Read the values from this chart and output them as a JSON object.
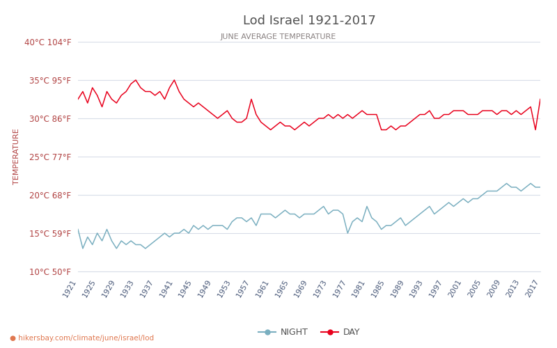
{
  "title": "Lod Israel 1921-2017",
  "subtitle": "JUNE AVERAGE TEMPERATURE",
  "ylabel": "TEMPERATURE",
  "footer": "hikersbay.com/climate/june/israel/lod",
  "years": [
    1921,
    1922,
    1923,
    1924,
    1925,
    1926,
    1927,
    1928,
    1929,
    1930,
    1931,
    1932,
    1933,
    1934,
    1935,
    1936,
    1937,
    1938,
    1939,
    1940,
    1941,
    1942,
    1943,
    1944,
    1945,
    1946,
    1947,
    1948,
    1949,
    1950,
    1951,
    1952,
    1953,
    1954,
    1955,
    1956,
    1957,
    1958,
    1959,
    1960,
    1961,
    1962,
    1963,
    1964,
    1965,
    1966,
    1967,
    1968,
    1969,
    1970,
    1971,
    1972,
    1973,
    1974,
    1975,
    1976,
    1977,
    1978,
    1979,
    1980,
    1981,
    1982,
    1983,
    1984,
    1985,
    1986,
    1987,
    1988,
    1989,
    1990,
    1991,
    1992,
    1993,
    1994,
    1995,
    1996,
    1997,
    1998,
    1999,
    2000,
    2001,
    2002,
    2003,
    2004,
    2005,
    2006,
    2007,
    2008,
    2009,
    2010,
    2011,
    2012,
    2013,
    2014,
    2015,
    2016,
    2017
  ],
  "day_temps": [
    32.5,
    33.5,
    32.0,
    34.0,
    33.0,
    31.5,
    33.5,
    32.5,
    32.0,
    33.0,
    33.5,
    34.5,
    35.0,
    34.0,
    33.5,
    33.5,
    33.0,
    33.5,
    32.5,
    34.0,
    35.0,
    33.5,
    32.5,
    32.0,
    31.5,
    32.0,
    31.5,
    31.0,
    30.5,
    30.0,
    30.5,
    31.0,
    30.0,
    29.5,
    29.5,
    30.0,
    32.5,
    30.5,
    29.5,
    29.0,
    28.5,
    29.0,
    29.5,
    29.0,
    29.0,
    28.5,
    29.0,
    29.5,
    29.0,
    29.5,
    30.0,
    30.0,
    30.5,
    30.0,
    30.5,
    30.0,
    30.5,
    30.0,
    30.5,
    31.0,
    30.5,
    30.5,
    30.5,
    28.5,
    28.5,
    29.0,
    28.5,
    29.0,
    29.0,
    29.5,
    30.0,
    30.5,
    30.5,
    31.0,
    30.0,
    30.0,
    30.5,
    30.5,
    31.0,
    31.0,
    31.0,
    30.5,
    30.5,
    30.5,
    31.0,
    31.0,
    31.0,
    30.5,
    31.0,
    31.0,
    30.5,
    31.0,
    30.5,
    31.0,
    31.5,
    28.5,
    32.5
  ],
  "night_temps": [
    15.5,
    13.0,
    14.5,
    13.5,
    15.0,
    14.0,
    15.5,
    14.0,
    13.0,
    14.0,
    13.5,
    14.0,
    13.5,
    13.5,
    13.0,
    13.5,
    14.0,
    14.5,
    15.0,
    14.5,
    15.0,
    15.0,
    15.5,
    15.0,
    16.0,
    15.5,
    16.0,
    15.5,
    16.0,
    16.0,
    16.0,
    15.5,
    16.5,
    17.0,
    17.0,
    16.5,
    17.0,
    16.0,
    17.5,
    17.5,
    17.5,
    17.0,
    17.5,
    18.0,
    17.5,
    17.5,
    17.0,
    17.5,
    17.5,
    17.5,
    18.0,
    18.5,
    17.5,
    18.0,
    18.0,
    17.5,
    15.0,
    16.5,
    17.0,
    16.5,
    18.5,
    17.0,
    16.5,
    15.5,
    16.0,
    16.0,
    16.5,
    17.0,
    16.0,
    16.5,
    17.0,
    17.5,
    18.0,
    18.5,
    17.5,
    18.0,
    18.5,
    19.0,
    18.5,
    19.0,
    19.5,
    19.0,
    19.5,
    19.5,
    20.0,
    20.5,
    20.5,
    20.5,
    21.0,
    21.5,
    21.0,
    21.0,
    20.5,
    21.0,
    21.5,
    21.0,
    21.0
  ],
  "ylim_min": 10,
  "ylim_max": 40,
  "yticks_c": [
    10,
    15,
    20,
    25,
    30,
    35,
    40
  ],
  "yticks_f": [
    50,
    59,
    68,
    77,
    86,
    95,
    104
  ],
  "xtick_years": [
    1921,
    1925,
    1929,
    1933,
    1937,
    1941,
    1945,
    1949,
    1953,
    1957,
    1961,
    1965,
    1969,
    1973,
    1977,
    1981,
    1985,
    1989,
    1993,
    1997,
    2001,
    2005,
    2009,
    2013,
    2017
  ],
  "day_color": "#e8001c",
  "night_color": "#7aafc0",
  "grid_color": "#d8dde8",
  "title_color": "#505050",
  "subtitle_color": "#888080",
  "ylabel_color": "#b04040",
  "ytick_color": "#b04040",
  "xtick_color": "#4a5a7a",
  "footer_color": "#e07850",
  "bg_color": "#ffffff"
}
